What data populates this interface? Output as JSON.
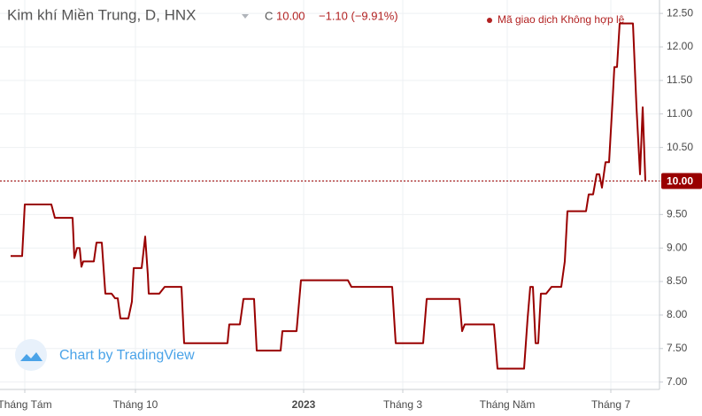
{
  "chart_data": {
    "type": "line",
    "title": "Kim khí Miền Trung, D, HNX",
    "close_prefix": "C",
    "close": "10.00",
    "change": "−1.10 (−9.91%)",
    "status": "Mã giao dịch Không hợp lệ",
    "watermark": "Chart by TradingView",
    "x": [
      4.8,
      10,
      11.2,
      23.2,
      24.8,
      32.8,
      33.6,
      34.8,
      36,
      36.8,
      37.6,
      42.4,
      43.6,
      46,
      47.6,
      50.4,
      52,
      53.2,
      54.4,
      58,
      59.6,
      60.4,
      64,
      65.6,
      66.8,
      67.2,
      72,
      74.4,
      82,
      83.2,
      102.8,
      103.6,
      108.4,
      110,
      114.8,
      116,
      126.8,
      127.6,
      134,
      136,
      157.2,
      158.8,
      177.2,
      178.8,
      191.2,
      192.8,
      207.6,
      208.8,
      210,
      223.2,
      224.8,
      236.8,
      238.4,
      239.6,
      240.8,
      242,
      243.2,
      244.4,
      246.8,
      249.2,
      253.6,
      255.2,
      256.4,
      264.8,
      266,
      268,
      269.6,
      270.8,
      272,
      273.6,
      275.2,
      276.8,
      277.6,
      278.8,
      280,
      286,
      287.6,
      289.2,
      290.4,
      291.6
    ],
    "series": [
      {
        "color": "#990000",
        "values": [
          8.88,
          8.88,
          9.65,
          9.65,
          9.45,
          9.45,
          8.85,
          9.0,
          9.0,
          8.72,
          8.8,
          8.8,
          9.08,
          9.08,
          8.32,
          8.32,
          8.25,
          8.25,
          7.95,
          7.95,
          8.2,
          8.7,
          8.7,
          9.17,
          8.6,
          8.32,
          8.32,
          8.42,
          8.42,
          7.58,
          7.58,
          7.86,
          7.86,
          8.24,
          8.24,
          7.47,
          7.47,
          7.76,
          7.76,
          8.52,
          8.52,
          8.42,
          8.42,
          7.58,
          7.58,
          8.24,
          8.24,
          7.76,
          7.86,
          7.86,
          7.2,
          7.2,
          7.95,
          8.42,
          8.42,
          7.58,
          7.58,
          8.32,
          8.32,
          8.42,
          8.42,
          8.8,
          9.55,
          9.55,
          9.8,
          9.8,
          10.1,
          10.1,
          9.9,
          10.28,
          10.28,
          11.2,
          11.7,
          11.7,
          12.35,
          12.35,
          11.1,
          10.1,
          11.1,
          10.0
        ]
      }
    ],
    "last_price": {
      "value": 10,
      "label": "10.00"
    },
    "xlim": [
      0,
      298
    ],
    "xticks": [
      {
        "value": 11.2,
        "label": "Tháng Tám"
      },
      {
        "value": 61.2,
        "label": "Tháng 10"
      },
      {
        "value": 137.2,
        "label": "2023"
      },
      {
        "value": 182,
        "label": "Tháng 3"
      },
      {
        "value": 229.2,
        "label": "Tháng Năm"
      },
      {
        "value": 276,
        "label": "Tháng 7"
      }
    ],
    "ylim": [
      6.89,
      12.7
    ],
    "yticks": [
      {
        "value": 7,
        "label": "7.00"
      },
      {
        "value": 7.5,
        "label": "7.50"
      },
      {
        "value": 8,
        "label": "8.00"
      },
      {
        "value": 8.5,
        "label": "8.50"
      },
      {
        "value": 9,
        "label": "9.00"
      },
      {
        "value": 9.5,
        "label": "9.50"
      },
      {
        "value": 10,
        "label": "10.00"
      },
      {
        "value": 10.5,
        "label": "10.50"
      },
      {
        "value": 11,
        "label": "11.00"
      },
      {
        "value": 11.5,
        "label": "11.50"
      },
      {
        "value": 12,
        "label": "12.00"
      },
      {
        "value": 12.5,
        "label": "12.50"
      }
    ],
    "grid": true
  }
}
